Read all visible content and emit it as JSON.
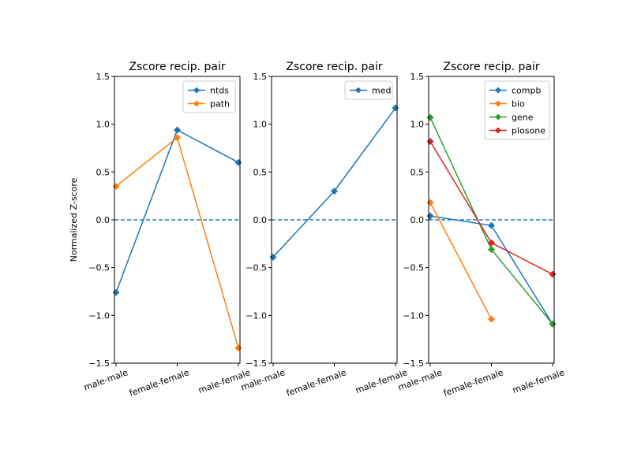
{
  "figure": {
    "ylabel": "Normalized Z-score"
  },
  "chart_data": [
    {
      "type": "line",
      "title": "Zscore recip. pair",
      "categories": [
        "male-male",
        "female-female",
        "male-female"
      ],
      "ylim": [
        -1.5,
        1.5
      ],
      "yticks": [
        -1.5,
        -1.0,
        -0.5,
        0.0,
        0.5,
        1.0,
        1.5
      ],
      "ytick_labels": [
        "−1.5",
        "−1.0",
        "−0.5",
        "0.0",
        "0.5",
        "1.0",
        "1.5"
      ],
      "reference_line": 0.0,
      "legend": "top-right",
      "grid": false,
      "series": [
        {
          "name": "ntds",
          "color": "#1f77b4",
          "values": [
            -0.76,
            0.94,
            0.6
          ]
        },
        {
          "name": "path",
          "color": "#ff7f0e",
          "values": [
            0.35,
            0.86,
            -1.34
          ]
        }
      ]
    },
    {
      "type": "line",
      "title": "Zscore recip. pair",
      "categories": [
        "male-male",
        "female-female",
        "male-female"
      ],
      "ylim": [
        -1.5,
        1.5
      ],
      "yticks": [
        -1.5,
        -1.0,
        -0.5,
        0.0,
        0.5,
        1.0,
        1.5
      ],
      "ytick_labels": [
        "−1.5",
        "−1.0",
        "−0.5",
        "0.0",
        "0.5",
        "1.0",
        "1.5"
      ],
      "reference_line": 0.0,
      "legend": "top-right",
      "grid": false,
      "series": [
        {
          "name": "med",
          "color": "#1f77b4",
          "values": [
            -0.39,
            0.3,
            1.17
          ]
        }
      ]
    },
    {
      "type": "line",
      "title": "Zscore recip. pair",
      "categories": [
        "male-male",
        "female-female",
        "male-female"
      ],
      "ylim": [
        -1.5,
        1.5
      ],
      "yticks": [
        -1.5,
        -1.0,
        -0.5,
        0.0,
        0.5,
        1.0,
        1.5
      ],
      "ytick_labels": [
        "−1.5",
        "−1.0",
        "−0.5",
        "0.0",
        "0.5",
        "1.0",
        "1.5"
      ],
      "reference_line": 0.0,
      "legend": "top-right",
      "grid": false,
      "series": [
        {
          "name": "compb",
          "color": "#1f77b4",
          "values": [
            0.04,
            -0.06,
            -1.09
          ]
        },
        {
          "name": "bio",
          "color": "#ff7f0e",
          "values": [
            0.18,
            -1.04,
            null
          ]
        },
        {
          "name": "gene",
          "color": "#2ca02c",
          "values": [
            1.07,
            -0.31,
            -1.09
          ]
        },
        {
          "name": "plosone",
          "color": "#d62728",
          "values": [
            0.82,
            -0.24,
            -0.57
          ]
        }
      ]
    }
  ]
}
